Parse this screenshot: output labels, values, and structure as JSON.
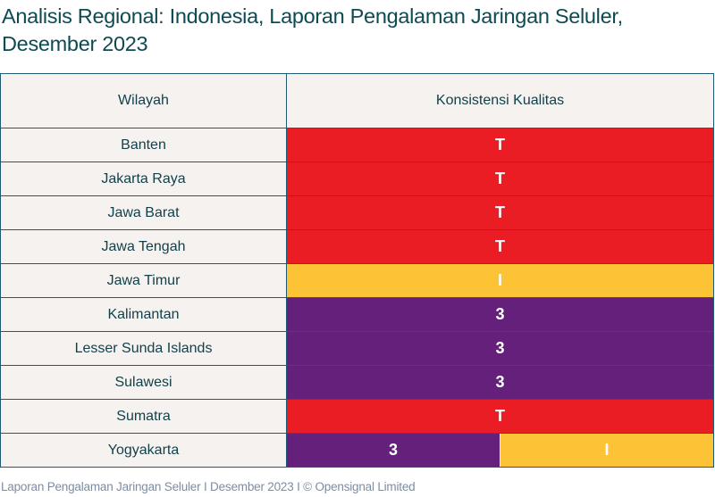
{
  "title": "Analisis Regional: Indonesia, Laporan Pengalaman Jaringan Seluler, Desember 2023",
  "table": {
    "headers": [
      "Wilayah",
      "Konsistensi Kualitas"
    ],
    "rows": [
      {
        "region": "Banten",
        "cells": [
          {
            "label": "T",
            "color": "#ea1c24"
          }
        ]
      },
      {
        "region": "Jakarta Raya",
        "cells": [
          {
            "label": "T",
            "color": "#ea1c24"
          }
        ]
      },
      {
        "region": "Jawa Barat",
        "cells": [
          {
            "label": "T",
            "color": "#ea1c24"
          }
        ]
      },
      {
        "region": "Jawa Tengah",
        "cells": [
          {
            "label": "T",
            "color": "#ea1c24"
          }
        ]
      },
      {
        "region": "Jawa Timur",
        "cells": [
          {
            "label": "I",
            "color": "#fdc336"
          }
        ]
      },
      {
        "region": "Kalimantan",
        "cells": [
          {
            "label": "3",
            "color": "#65207b"
          }
        ]
      },
      {
        "region": "Lesser Sunda Islands",
        "cells": [
          {
            "label": "3",
            "color": "#65207b"
          }
        ]
      },
      {
        "region": "Sulawesi",
        "cells": [
          {
            "label": "3",
            "color": "#65207b"
          }
        ]
      },
      {
        "region": "Sumatra",
        "cells": [
          {
            "label": "T",
            "color": "#ea1c24"
          }
        ]
      },
      {
        "region": "Yogyakarta",
        "cells": [
          {
            "label": "3",
            "color": "#65207b"
          },
          {
            "label": "I",
            "color": "#fdc336"
          }
        ]
      }
    ]
  },
  "footer": "Laporan Pengalaman Jaringan Seluler I Desember 2023 I © Opensignal Limited",
  "chart_data": {
    "type": "table",
    "title": "Analisis Regional: Indonesia, Laporan Pengalaman Jaringan Seluler, Desember 2023",
    "columns": [
      "Wilayah",
      "Konsistensi Kualitas"
    ],
    "rows": [
      [
        "Banten",
        "T"
      ],
      [
        "Jakarta Raya",
        "T"
      ],
      [
        "Jawa Barat",
        "T"
      ],
      [
        "Jawa Tengah",
        "T"
      ],
      [
        "Jawa Timur",
        "I"
      ],
      [
        "Kalimantan",
        "3"
      ],
      [
        "Lesser Sunda Islands",
        "3"
      ],
      [
        "Sulawesi",
        "3"
      ],
      [
        "Sumatra",
        "T"
      ],
      [
        "Yogyakarta",
        "3 / I"
      ]
    ],
    "legend_colors": {
      "T": "#ea1c24",
      "I": "#fdc336",
      "3": "#65207b"
    }
  }
}
